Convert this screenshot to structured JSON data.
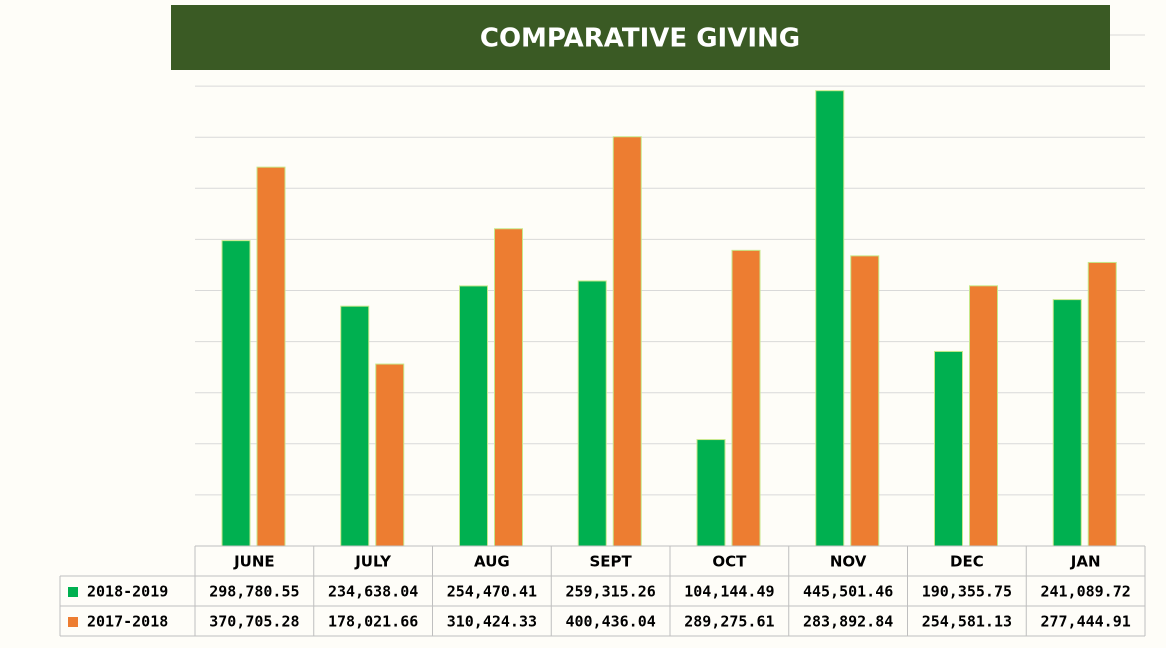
{
  "chart_data": {
    "type": "bar",
    "title": "COMPARATIVE GIVING",
    "categories": [
      "JUNE",
      "JULY",
      "AUG",
      "SEPT",
      "OCT",
      "NOV",
      "DEC",
      "JAN"
    ],
    "series": [
      {
        "name": "2018-2019",
        "color": "#00b050",
        "values": [
          298780.55,
          234638.04,
          254470.41,
          259315.26,
          104144.49,
          445501.46,
          190355.75,
          241089.72
        ],
        "value_labels": [
          "298,780.55",
          "234,638.04",
          "254,470.41",
          "259,315.26",
          "104,144.49",
          "445,501.46",
          "190,355.75",
          "241,089.72"
        ]
      },
      {
        "name": "2017-2018",
        "color": "#ed7d31",
        "values": [
          370705.28,
          178021.66,
          310424.33,
          400436.04,
          289275.61,
          283892.84,
          254581.13,
          277444.91
        ],
        "value_labels": [
          "370,705.28",
          "178,021.66",
          "310,424.33",
          "400,436.04",
          "289,275.61",
          "283,892.84",
          "254,581.13",
          "277,444.91"
        ]
      }
    ],
    "ylim": [
      0,
      500000
    ],
    "yticks": [
      0,
      50000,
      100000,
      150000,
      200000,
      250000,
      300000,
      350000,
      400000,
      450000,
      500000
    ],
    "grid": true
  }
}
